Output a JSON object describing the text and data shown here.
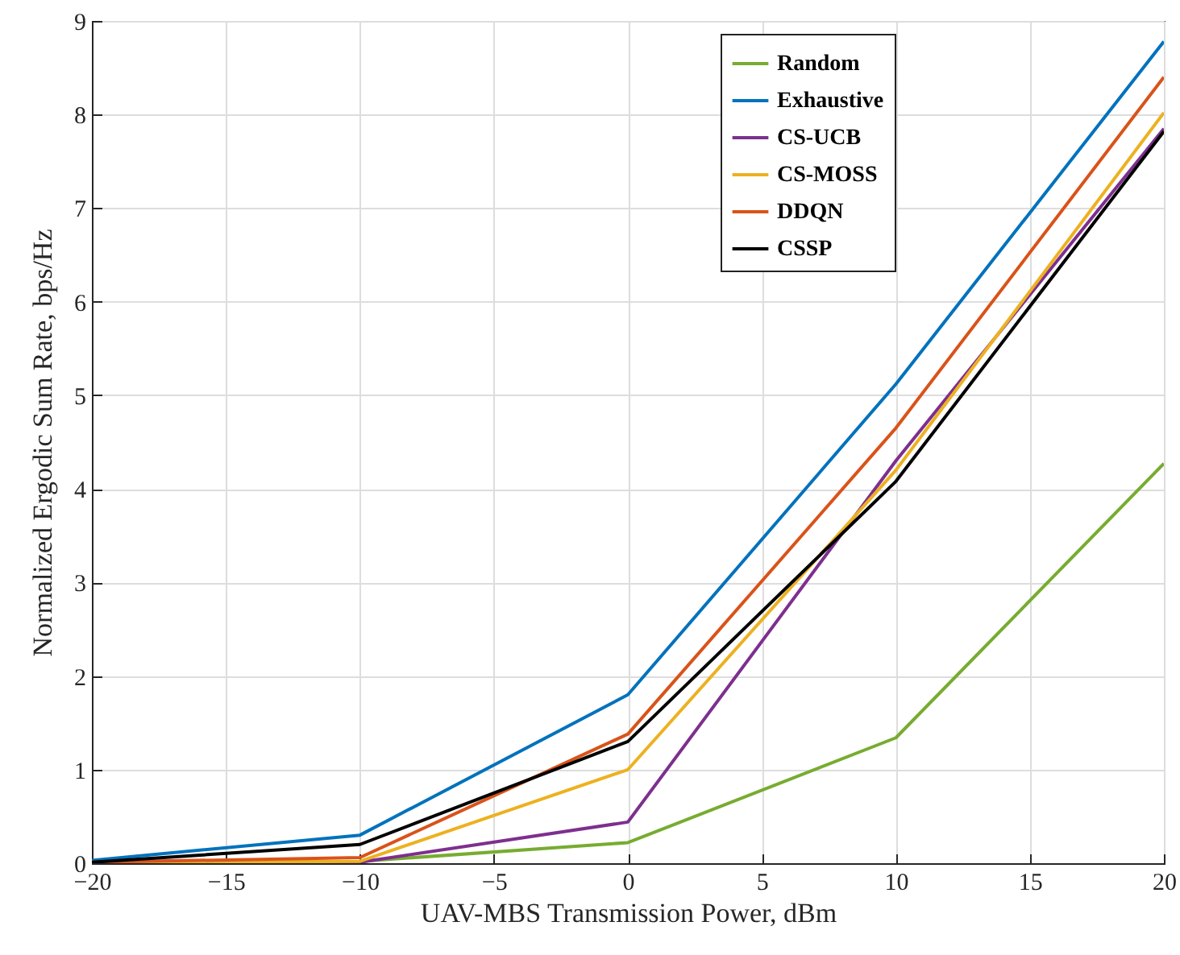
{
  "chart_data": {
    "type": "line",
    "xlabel": "UAV-MBS Transmission Power, dBm",
    "ylabel": "Normalized Ergodic Sum Rate, bps/Hz",
    "x": [
      -20,
      -10,
      0,
      10,
      20
    ],
    "series": [
      {
        "name": "Random",
        "color": "#77ac30",
        "values": [
          0,
          0.02,
          0.22,
          1.34,
          4.27
        ]
      },
      {
        "name": "Exhaustive",
        "color": "#0072bd",
        "values": [
          0.03,
          0.3,
          1.8,
          5.12,
          8.78
        ]
      },
      {
        "name": "CS-UCB",
        "color": "#7e2f8e",
        "values": [
          0,
          0.01,
          0.44,
          4.3,
          7.85
        ]
      },
      {
        "name": "CS-MOSS",
        "color": "#edb120",
        "values": [
          0,
          0.02,
          1.0,
          4.2,
          8.02
        ]
      },
      {
        "name": "DDQN",
        "color": "#d95319",
        "values": [
          0.01,
          0.06,
          1.38,
          4.65,
          8.4
        ]
      },
      {
        "name": "CSSP",
        "color": "#000000",
        "values": [
          0.01,
          0.2,
          1.3,
          4.08,
          7.82
        ]
      }
    ],
    "xlim": [
      -20,
      20
    ],
    "xticks": [
      -20,
      -15,
      -10,
      -5,
      0,
      5,
      10,
      15,
      20
    ],
    "ylim": [
      0,
      9
    ],
    "yticks": [
      0,
      1,
      2,
      3,
      4,
      5,
      6,
      7,
      8,
      9
    ],
    "grid": true,
    "legend": "top right",
    "marker": "none",
    "line_style": "solid"
  }
}
